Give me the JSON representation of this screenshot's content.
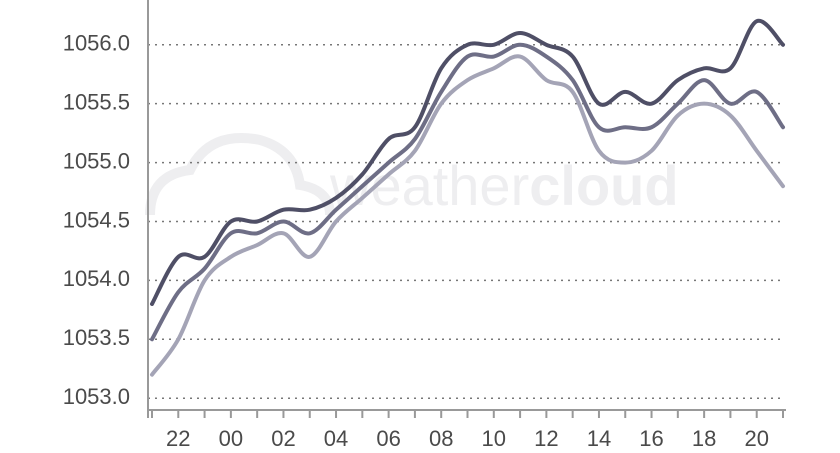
{
  "chart_data": {
    "type": "line",
    "watermark": [
      "weather",
      "cloud"
    ],
    "categories": [
      null,
      "22",
      null,
      "00",
      null,
      "02",
      null,
      "04",
      null,
      "06",
      null,
      "08",
      null,
      "10",
      null,
      "12",
      null,
      "14",
      null,
      "16",
      null,
      "18",
      null,
      "20",
      null
    ],
    "series": [
      {
        "color": "#4f4f66",
        "values": [
          1053.8,
          1054.2,
          1054.2,
          1054.5,
          1054.5,
          1054.6,
          1054.6,
          1054.7,
          1054.9,
          1055.2,
          1055.3,
          1055.8,
          1056.0,
          1056.0,
          1056.1,
          1056.0,
          1055.9,
          1055.5,
          1055.6,
          1055.5,
          1055.7,
          1055.8,
          1055.8,
          1056.2,
          1056.0
        ]
      },
      {
        "color": "#6e6e86",
        "values": [
          1053.5,
          1053.9,
          1054.1,
          1054.4,
          1054.4,
          1054.5,
          1054.4,
          1054.6,
          1054.8,
          1055.0,
          1055.2,
          1055.6,
          1055.9,
          1055.9,
          1056.0,
          1055.9,
          1055.7,
          1055.3,
          1055.3,
          1055.3,
          1055.5,
          1055.7,
          1055.5,
          1055.6,
          1055.3
        ]
      },
      {
        "color": "#a4a4b6",
        "values": [
          1053.2,
          1053.5,
          1054.0,
          1054.2,
          1054.3,
          1054.4,
          1054.2,
          1054.5,
          1054.7,
          1054.9,
          1055.1,
          1055.5,
          1055.7,
          1055.8,
          1055.9,
          1055.7,
          1055.6,
          1055.1,
          1055.0,
          1055.1,
          1055.4,
          1055.5,
          1055.4,
          1055.1,
          1054.8
        ]
      }
    ],
    "ylim": [
      1052.9,
      1056.38
    ],
    "yticks": [
      {
        "value": 1053,
        "label": "1053.0"
      },
      {
        "value": 1053.5,
        "label": "1053.5"
      },
      {
        "value": 1054,
        "label": "1054.0"
      },
      {
        "value": 1054.5,
        "label": "1054.5"
      },
      {
        "value": 1055,
        "label": "1055.0"
      },
      {
        "value": 1055.5,
        "label": "1055.5"
      },
      {
        "value": 1056,
        "label": "1056.0"
      }
    ],
    "grid": true
  }
}
